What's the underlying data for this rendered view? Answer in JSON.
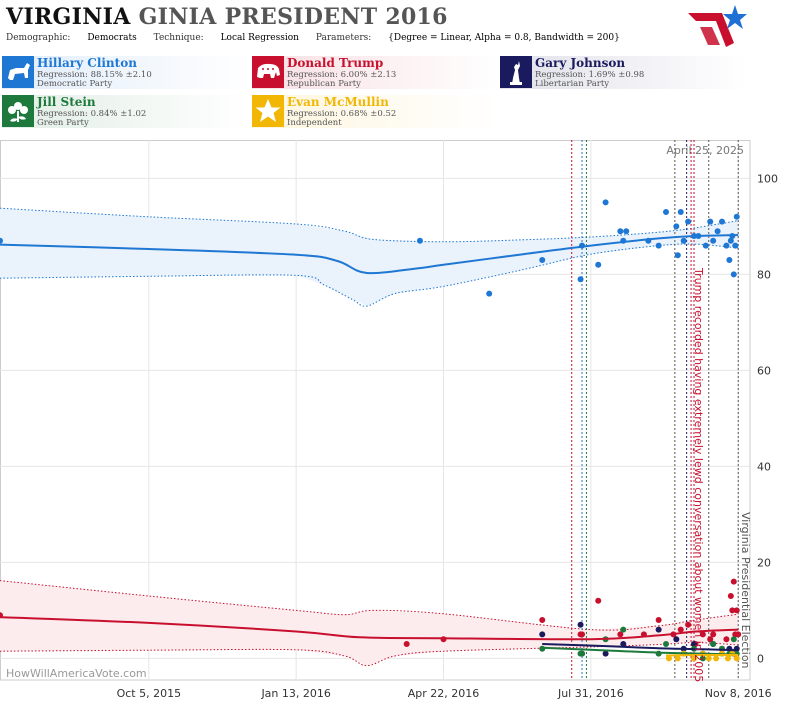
{
  "header": {
    "state": "VIRGINIA",
    "race": "GINIA PRESIDENT 2016",
    "demographic_label": "Demographic:",
    "demographic_value": "Democrats",
    "technique_label": "Technique:",
    "technique_value": "Local Regression",
    "parameters_label": "Parameters:",
    "parameters_value": "{Degree = Linear, Alpha = 0.8, Bandwidth = 200}"
  },
  "candidates": [
    {
      "name": "Hillary Clinton",
      "regression": "Regression: 88.15% ±2.10",
      "party": "Democratic Party",
      "color": "#1f77d4",
      "icon": "donkey-icon"
    },
    {
      "name": "Donald Trump",
      "regression": "Regression: 6.00% ±2.13",
      "party": "Republican Party",
      "color": "#c8102e",
      "icon": "elephant-icon"
    },
    {
      "name": "Gary Johnson",
      "regression": "Regression: 1.69% ±0.98",
      "party": "Libertarian Party",
      "color": "#1a1a5e",
      "icon": "liberty-statue-icon"
    },
    {
      "name": "Jill Stein",
      "regression": "Regression: 0.84% ±1.02",
      "party": "Green Party",
      "color": "#1e7a3c",
      "icon": "flower-icon"
    },
    {
      "name": "Evan McMullin",
      "regression": "Regression: 0.68% ±0.52",
      "party": "Independent",
      "color": "#f2b705",
      "icon": "star-icon"
    }
  ],
  "chart_data": {
    "type": "scatter",
    "date_label": "April 25, 2025",
    "watermark": "HowWillAmericaVote.com",
    "x_ticks": [
      {
        "label": "Oct 5, 2015",
        "x": "2015-10-05"
      },
      {
        "label": "Jan 13, 2016",
        "x": "2016-01-13"
      },
      {
        "label": "Apr 22, 2016",
        "x": "2016-04-22"
      },
      {
        "label": "Jul 31, 2016",
        "x": "2016-07-31"
      },
      {
        "label": "Nov 8, 2016",
        "x": "2016-11-08"
      }
    ],
    "xlim": [
      "2015-06-26",
      "2016-11-16"
    ],
    "y_ticks": [
      0,
      20,
      40,
      60,
      80,
      100
    ],
    "ylim": [
      -4.5,
      108
    ],
    "annotations": [
      {
        "text": "Trump recorded having extremely lewd conversation about women in 2005",
        "x": "2016-10-07",
        "color": "#c8102e"
      },
      {
        "text": "Virginia Presidential Election",
        "x": "2016-11-08",
        "color": "#555555"
      }
    ],
    "event_lines": [
      {
        "x": "2016-07-18",
        "color": "#c8102e"
      },
      {
        "x": "2016-07-25",
        "color": "#1f77d4"
      },
      {
        "x": "2016-07-28",
        "color": "#1e7a3c"
      },
      {
        "x": "2016-09-26",
        "color": "#555555"
      },
      {
        "x": "2016-10-04",
        "color": "#1a1a5e"
      },
      {
        "x": "2016-10-07",
        "color": "#c8102e"
      },
      {
        "x": "2016-10-09",
        "color": "#c8102e"
      },
      {
        "x": "2016-10-19",
        "color": "#555555"
      },
      {
        "x": "2016-11-08",
        "color": "#555555"
      }
    ],
    "series": [
      {
        "name": "Hillary Clinton",
        "color": "#1f77d4",
        "band_fill": "#eaf2fb",
        "fit": [
          [
            "2015-06-26",
            86.2
          ],
          [
            "2015-10-05",
            85.3
          ],
          [
            "2016-01-13",
            84.1
          ],
          [
            "2016-02-10",
            82.8
          ],
          [
            "2016-03-01",
            80.3
          ],
          [
            "2016-04-05",
            81.3
          ],
          [
            "2016-04-22",
            82.0
          ],
          [
            "2016-06-15",
            84.2
          ],
          [
            "2016-07-31",
            86.0
          ],
          [
            "2016-09-15",
            87.5
          ],
          [
            "2016-10-10",
            88.0
          ],
          [
            "2016-11-08",
            88.2
          ]
        ],
        "upper": [
          [
            "2015-06-26",
            93.8
          ],
          [
            "2015-10-05",
            92.0
          ],
          [
            "2016-01-13",
            90.5
          ],
          [
            "2016-02-15",
            89.0
          ],
          [
            "2016-03-05",
            87.3
          ],
          [
            "2016-04-22",
            86.8
          ],
          [
            "2016-06-15",
            87.2
          ],
          [
            "2016-07-31",
            87.8
          ],
          [
            "2016-09-15",
            88.8
          ],
          [
            "2016-10-10",
            89.7
          ],
          [
            "2016-11-08",
            91.2
          ]
        ],
        "lower": [
          [
            "2015-06-26",
            79.2
          ],
          [
            "2015-10-05",
            79.6
          ],
          [
            "2016-01-13",
            79.8
          ],
          [
            "2016-02-01",
            77.8
          ],
          [
            "2016-02-20",
            74.8
          ],
          [
            "2016-03-01",
            73.4
          ],
          [
            "2016-03-20",
            76.0
          ],
          [
            "2016-04-22",
            77.5
          ],
          [
            "2016-06-15",
            81.0
          ],
          [
            "2016-07-31",
            84.2
          ],
          [
            "2016-09-15",
            86.0
          ],
          [
            "2016-10-10",
            86.3
          ],
          [
            "2016-11-08",
            85.5
          ]
        ],
        "points": [
          [
            "2015-06-26",
            87
          ],
          [
            "2016-04-06",
            87
          ],
          [
            "2016-05-23",
            76
          ],
          [
            "2016-06-28",
            83
          ],
          [
            "2016-07-24",
            79
          ],
          [
            "2016-07-25",
            86
          ],
          [
            "2016-08-05",
            82
          ],
          [
            "2016-08-10",
            95
          ],
          [
            "2016-08-20",
            89
          ],
          [
            "2016-08-22",
            87
          ],
          [
            "2016-08-24",
            89
          ],
          [
            "2016-09-08",
            87
          ],
          [
            "2016-09-15",
            86
          ],
          [
            "2016-09-20",
            93
          ],
          [
            "2016-09-27",
            90
          ],
          [
            "2016-09-28",
            84
          ],
          [
            "2016-09-30",
            93
          ],
          [
            "2016-10-02",
            87
          ],
          [
            "2016-10-05",
            91
          ],
          [
            "2016-10-09",
            88
          ],
          [
            "2016-10-12",
            88
          ],
          [
            "2016-10-17",
            86
          ],
          [
            "2016-10-20",
            91
          ],
          [
            "2016-10-22",
            87
          ],
          [
            "2016-10-25",
            89
          ],
          [
            "2016-10-28",
            91
          ],
          [
            "2016-10-31",
            86
          ],
          [
            "2016-11-02",
            83
          ],
          [
            "2016-11-03",
            87
          ],
          [
            "2016-11-04",
            88
          ],
          [
            "2016-11-05",
            80
          ],
          [
            "2016-11-06",
            86
          ],
          [
            "2016-11-07",
            92
          ]
        ]
      },
      {
        "name": "Donald Trump",
        "color": "#c8102e",
        "band_fill": "#fcecee",
        "fit": [
          [
            "2015-06-26",
            8.6
          ],
          [
            "2015-10-05",
            7.4
          ],
          [
            "2016-01-13",
            5.6
          ],
          [
            "2016-02-25",
            4.4
          ],
          [
            "2016-04-22",
            4.2
          ],
          [
            "2016-07-31",
            4.0
          ],
          [
            "2016-09-15",
            4.8
          ],
          [
            "2016-10-10",
            5.6
          ],
          [
            "2016-11-08",
            6.0
          ]
        ],
        "upper": [
          [
            "2015-06-26",
            16.2
          ],
          [
            "2015-10-05",
            13.0
          ],
          [
            "2016-01-13",
            10.0
          ],
          [
            "2016-02-15",
            9.1
          ],
          [
            "2016-03-05",
            10.0
          ],
          [
            "2016-04-22",
            9.3
          ],
          [
            "2016-07-31",
            6.0
          ],
          [
            "2016-09-15",
            6.8
          ],
          [
            "2016-10-10",
            8.0
          ],
          [
            "2016-11-08",
            9.2
          ]
        ],
        "lower": [
          [
            "2015-06-26",
            1.5
          ],
          [
            "2015-10-05",
            1.7
          ],
          [
            "2016-01-13",
            1.8
          ],
          [
            "2016-02-15",
            0.5
          ],
          [
            "2016-03-01",
            -1.5
          ],
          [
            "2016-03-20",
            0.5
          ],
          [
            "2016-04-22",
            1.5
          ],
          [
            "2016-07-31",
            2.4
          ],
          [
            "2016-09-15",
            2.9
          ],
          [
            "2016-10-10",
            3.3
          ],
          [
            "2016-11-08",
            2.8
          ]
        ],
        "points": [
          [
            "2015-06-26",
            9
          ],
          [
            "2016-03-28",
            3
          ],
          [
            "2016-04-22",
            4
          ],
          [
            "2016-06-28",
            8
          ],
          [
            "2016-07-24",
            5
          ],
          [
            "2016-07-25",
            5
          ],
          [
            "2016-08-05",
            12
          ],
          [
            "2016-08-20",
            5
          ],
          [
            "2016-09-05",
            5
          ],
          [
            "2016-09-15",
            8
          ],
          [
            "2016-09-25",
            5
          ],
          [
            "2016-09-30",
            6
          ],
          [
            "2016-10-05",
            7
          ],
          [
            "2016-10-10",
            3
          ],
          [
            "2016-10-15",
            5
          ],
          [
            "2016-10-20",
            4
          ],
          [
            "2016-10-22",
            5
          ],
          [
            "2016-10-28",
            2
          ],
          [
            "2016-10-31",
            4
          ],
          [
            "2016-11-03",
            13
          ],
          [
            "2016-11-04",
            10
          ],
          [
            "2016-11-05",
            16
          ],
          [
            "2016-11-06",
            5
          ],
          [
            "2016-11-07",
            10
          ],
          [
            "2016-11-08",
            5
          ]
        ]
      },
      {
        "name": "Gary Johnson",
        "color": "#1a1a5e",
        "fit": [
          [
            "2016-06-28",
            3.0
          ],
          [
            "2016-08-15",
            2.5
          ],
          [
            "2016-09-15",
            2.1
          ],
          [
            "2016-10-15",
            1.9
          ],
          [
            "2016-11-08",
            1.7
          ]
        ],
        "points": [
          [
            "2016-06-28",
            5
          ],
          [
            "2016-07-24",
            7
          ],
          [
            "2016-07-25",
            1
          ],
          [
            "2016-08-10",
            1
          ],
          [
            "2016-08-22",
            3
          ],
          [
            "2016-09-15",
            6
          ],
          [
            "2016-09-27",
            4
          ],
          [
            "2016-10-02",
            2
          ],
          [
            "2016-10-09",
            3
          ],
          [
            "2016-10-15",
            1
          ],
          [
            "2016-10-22",
            3
          ],
          [
            "2016-10-28",
            1
          ],
          [
            "2016-11-02",
            2
          ],
          [
            "2016-11-05",
            1
          ],
          [
            "2016-11-07",
            2
          ]
        ]
      },
      {
        "name": "Jill Stein",
        "color": "#1e7a3c",
        "fit": [
          [
            "2016-06-28",
            2.2
          ],
          [
            "2016-08-15",
            1.6
          ],
          [
            "2016-09-15",
            1.2
          ],
          [
            "2016-10-15",
            1.0
          ],
          [
            "2016-11-08",
            0.8
          ]
        ],
        "points": [
          [
            "2016-06-28",
            2
          ],
          [
            "2016-07-24",
            1
          ],
          [
            "2016-07-25",
            1
          ],
          [
            "2016-08-10",
            4
          ],
          [
            "2016-08-22",
            6
          ],
          [
            "2016-09-15",
            1
          ],
          [
            "2016-09-20",
            3
          ],
          [
            "2016-10-02",
            1
          ],
          [
            "2016-10-09",
            2
          ],
          [
            "2016-10-15",
            0
          ],
          [
            "2016-10-22",
            3
          ],
          [
            "2016-10-28",
            2
          ],
          [
            "2016-11-02",
            1
          ],
          [
            "2016-11-05",
            4
          ],
          [
            "2016-11-07",
            1
          ]
        ]
      },
      {
        "name": "Evan McMullin",
        "color": "#f2b705",
        "fit": [
          [
            "2016-09-20",
            0.6
          ],
          [
            "2016-10-15",
            0.7
          ],
          [
            "2016-11-08",
            0.7
          ]
        ],
        "points": [
          [
            "2016-09-22",
            0
          ],
          [
            "2016-09-28",
            0
          ],
          [
            "2016-10-02",
            1
          ],
          [
            "2016-10-09",
            0
          ],
          [
            "2016-10-15",
            1
          ],
          [
            "2016-10-19",
            0
          ],
          [
            "2016-10-24",
            0
          ],
          [
            "2016-10-28",
            1
          ],
          [
            "2016-11-01",
            0
          ],
          [
            "2016-11-04",
            1
          ],
          [
            "2016-11-07",
            0
          ]
        ]
      }
    ]
  }
}
